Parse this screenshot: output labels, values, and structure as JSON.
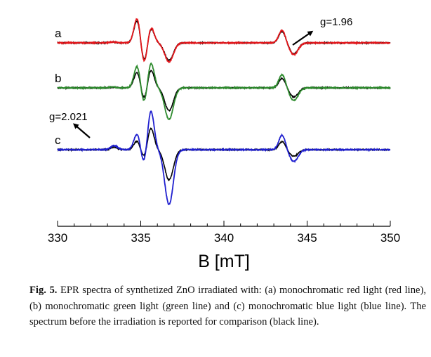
{
  "chart_data": {
    "type": "line",
    "xlabel": "B [mT]",
    "ylabel": "",
    "xlim": [
      330,
      350
    ],
    "xticks": [
      330,
      335,
      340,
      345,
      350
    ],
    "grid": false,
    "legend": "none",
    "trace_labels": [
      "a",
      "b",
      "c"
    ],
    "annotations": [
      {
        "text": "g=1.96",
        "points_to_field": 344.2,
        "trace": "a"
      },
      {
        "text": "g=2.021",
        "points_to_field": 333.4,
        "trace": "c"
      }
    ],
    "traces": [
      {
        "label": "a",
        "baseline": 0,
        "features": [
          {
            "field": 333.3,
            "amp": 0.02
          },
          {
            "field": 334.8,
            "amp": 0.62
          },
          {
            "field": 335.2,
            "amp": -0.55
          },
          {
            "field": 335.6,
            "amp": 0.4
          },
          {
            "field": 336.7,
            "amp": -0.45
          },
          {
            "field": 343.5,
            "amp": 0.3
          },
          {
            "field": 344.2,
            "amp": -0.28
          }
        ],
        "series": [
          {
            "name": "",
            "color": "#e3161b",
            "scale": 1.0
          },
          {
            "name": "",
            "color": "#000000",
            "scale": 0.92
          }
        ]
      },
      {
        "label": "b",
        "baseline": 0,
        "features": [
          {
            "field": 333.3,
            "amp": 0.02
          },
          {
            "field": 334.8,
            "amp": 0.55
          },
          {
            "field": 335.2,
            "amp": -0.45
          },
          {
            "field": 335.6,
            "amp": 0.62
          },
          {
            "field": 336.7,
            "amp": -0.75
          },
          {
            "field": 343.5,
            "amp": 0.32
          },
          {
            "field": 344.2,
            "amp": -0.3
          }
        ],
        "series": [
          {
            "name": "",
            "color": "#2e8b2e",
            "scale": 1.0
          },
          {
            "name": "",
            "color": "#000000",
            "scale": 0.72
          }
        ]
      },
      {
        "label": "c",
        "baseline": 0,
        "features": [
          {
            "field": 333.4,
            "amp": 0.1
          },
          {
            "field": 334.8,
            "amp": 0.4
          },
          {
            "field": 335.2,
            "amp": -0.4
          },
          {
            "field": 335.6,
            "amp": 0.95
          },
          {
            "field": 336.7,
            "amp": -1.3
          },
          {
            "field": 343.5,
            "amp": 0.35
          },
          {
            "field": 344.2,
            "amp": -0.28
          }
        ],
        "series": [
          {
            "name": "",
            "color": "#1f1fcf",
            "scale": 1.0
          },
          {
            "name": "",
            "color": "#000000",
            "scale": 0.55
          }
        ]
      }
    ]
  },
  "caption": {
    "figure_number": "Fig. 5.",
    "text": "EPR spectra of synthetized ZnO irradiated with: (a) monochromatic red light (red line), (b) monochromatic green light (green line) and (c) monochromatic blue light (blue line). The spectrum before the irradiation is reported for comparison (black line)."
  }
}
